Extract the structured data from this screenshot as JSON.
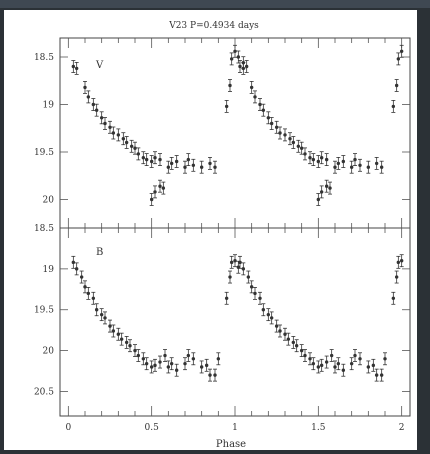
{
  "chart_data": [
    {
      "type": "scatter",
      "title": "V23 P=0.4934 days",
      "panel_label": "V",
      "xlabel": "",
      "ylabel": "",
      "xlim": [
        -0.05,
        2.05
      ],
      "ylim": [
        20.3,
        18.3
      ],
      "yticks": [
        "18.5",
        "19",
        "19.5",
        "20"
      ],
      "ytick_values": [
        18.5,
        19.0,
        19.5,
        20.0
      ],
      "points": [
        [
          0.03,
          18.6
        ],
        [
          0.05,
          18.62
        ],
        [
          0.1,
          18.82
        ],
        [
          0.12,
          18.92
        ],
        [
          0.15,
          19.0
        ],
        [
          0.17,
          19.06
        ],
        [
          0.2,
          19.14
        ],
        [
          0.22,
          19.2
        ],
        [
          0.25,
          19.24
        ],
        [
          0.27,
          19.3
        ],
        [
          0.3,
          19.32
        ],
        [
          0.33,
          19.36
        ],
        [
          0.35,
          19.4
        ],
        [
          0.38,
          19.44
        ],
        [
          0.4,
          19.46
        ],
        [
          0.42,
          19.52
        ],
        [
          0.45,
          19.56
        ],
        [
          0.47,
          19.58
        ],
        [
          0.5,
          19.6
        ],
        [
          0.52,
          19.56
        ],
        [
          0.55,
          19.58
        ],
        [
          0.6,
          19.66
        ],
        [
          0.62,
          19.62
        ],
        [
          0.65,
          19.6
        ],
        [
          0.7,
          19.66
        ],
        [
          0.72,
          19.58
        ],
        [
          0.75,
          19.64
        ],
        [
          0.8,
          19.66
        ],
        [
          0.85,
          19.62
        ],
        [
          0.88,
          19.66
        ],
        [
          0.5,
          20.0
        ],
        [
          0.52,
          19.92
        ],
        [
          0.55,
          19.86
        ],
        [
          0.57,
          19.88
        ],
        [
          0.95,
          19.02
        ],
        [
          0.97,
          18.8
        ],
        [
          0.98,
          18.52
        ],
        [
          1.0,
          18.44
        ],
        [
          1.02,
          18.5
        ],
        [
          1.05,
          18.56
        ],
        [
          1.07,
          18.6
        ]
      ]
    },
    {
      "type": "scatter",
      "title": "",
      "panel_label": "B",
      "xlabel": "Phase",
      "ylabel": "",
      "xlim": [
        -0.05,
        2.05
      ],
      "ylim": [
        20.8,
        18.5
      ],
      "xticks": [
        "0",
        "0.5",
        "1",
        "1.5",
        "2"
      ],
      "xtick_values": [
        0,
        0.5,
        1.0,
        1.5,
        2.0
      ],
      "yticks": [
        "18.5",
        "19",
        "19.5",
        "20",
        "20.5"
      ],
      "ytick_values": [
        18.5,
        19.0,
        19.5,
        20.0,
        20.5
      ],
      "points": [
        [
          0.03,
          18.92
        ],
        [
          0.05,
          19.0
        ],
        [
          0.08,
          19.1
        ],
        [
          0.1,
          19.22
        ],
        [
          0.12,
          19.3
        ],
        [
          0.15,
          19.36
        ],
        [
          0.17,
          19.5
        ],
        [
          0.2,
          19.56
        ],
        [
          0.22,
          19.6
        ],
        [
          0.25,
          19.7
        ],
        [
          0.27,
          19.76
        ],
        [
          0.3,
          19.8
        ],
        [
          0.32,
          19.86
        ],
        [
          0.35,
          19.9
        ],
        [
          0.37,
          19.94
        ],
        [
          0.4,
          20.0
        ],
        [
          0.42,
          20.06
        ],
        [
          0.45,
          20.1
        ],
        [
          0.47,
          20.16
        ],
        [
          0.5,
          20.2
        ],
        [
          0.52,
          20.18
        ],
        [
          0.55,
          20.14
        ],
        [
          0.58,
          20.06
        ],
        [
          0.6,
          20.2
        ],
        [
          0.62,
          20.16
        ],
        [
          0.65,
          20.24
        ],
        [
          0.7,
          20.16
        ],
        [
          0.72,
          20.06
        ],
        [
          0.75,
          20.1
        ],
        [
          0.8,
          20.2
        ],
        [
          0.83,
          20.18
        ],
        [
          0.85,
          20.3
        ],
        [
          0.88,
          20.3
        ],
        [
          0.9,
          20.1
        ],
        [
          0.95,
          19.36
        ],
        [
          0.97,
          19.1
        ],
        [
          0.98,
          18.92
        ],
        [
          1.0,
          18.9
        ],
        [
          1.02,
          18.98
        ]
      ]
    }
  ]
}
